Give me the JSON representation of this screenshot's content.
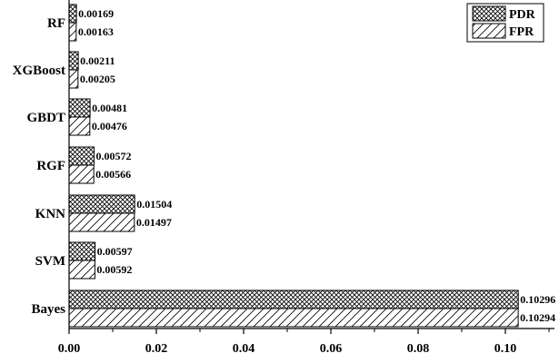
{
  "chart_data": {
    "type": "bar",
    "orientation": "horizontal",
    "categories": [
      "RF",
      "XGBoost",
      "GBDT",
      "RGF",
      "KNN",
      "SVM",
      "Bayes"
    ],
    "series": [
      {
        "name": "PDR",
        "pattern": "crosshatch",
        "values": [
          0.00169,
          0.00211,
          0.00481,
          0.00572,
          0.01504,
          0.00597,
          0.10296
        ],
        "labels": [
          "0.00169",
          "0.00211",
          "0.00481",
          "0.00572",
          "0.01504",
          "0.00597",
          "0.10296"
        ]
      },
      {
        "name": "FPR",
        "pattern": "diagonal",
        "values": [
          0.00163,
          0.00205,
          0.00476,
          0.00566,
          0.01497,
          0.00592,
          0.10294
        ],
        "labels": [
          "0.00163",
          "0.00205",
          "0.00476",
          "0.00566",
          "0.01497",
          "0.00592",
          "0.10294"
        ]
      }
    ],
    "xticks": [
      0,
      0.02,
      0.04,
      0.06,
      0.08,
      0.1
    ],
    "xtick_labels": [
      "0.00",
      "0.02",
      "0.04",
      "0.06",
      "0.08",
      "0.10"
    ],
    "xlim": [
      0,
      0.11
    ],
    "title": "",
    "xlabel": "",
    "ylabel": "",
    "grid": false,
    "legend_position": "top-right",
    "colors": {
      "bar_fill": "#ffffff",
      "bar_stroke": "#000000",
      "hatch": "#000000"
    }
  }
}
